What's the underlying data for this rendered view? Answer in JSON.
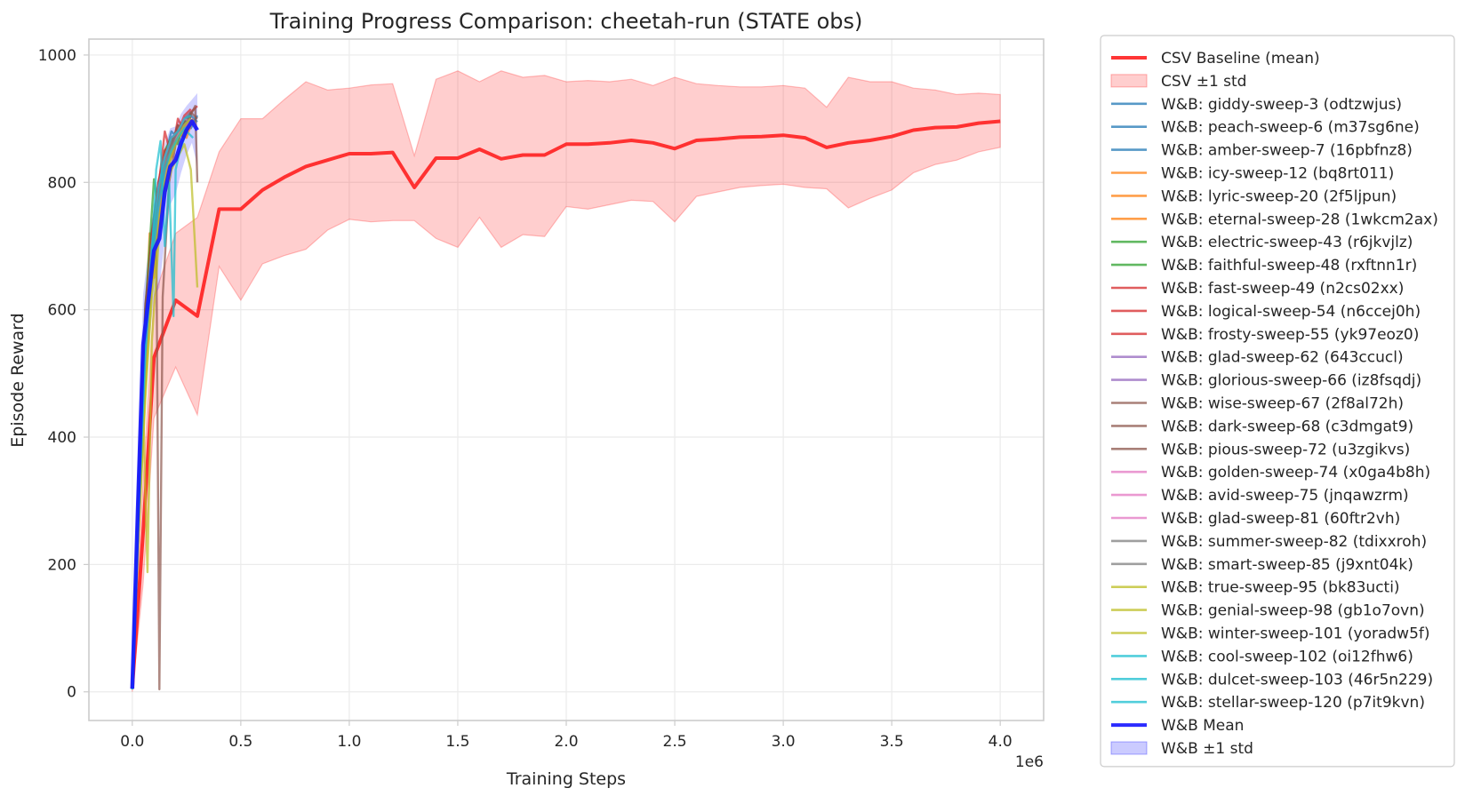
{
  "chart_data": {
    "type": "line",
    "title": "Training Progress Comparison: cheetah-run (STATE obs)",
    "xlabel": "Training Steps",
    "ylabel": "Episode Reward",
    "x_offset_label": "1e6",
    "xlim": [
      -0.2,
      4.2
    ],
    "ylim": [
      -45,
      1025
    ],
    "x_ticks": [
      0.0,
      0.5,
      1.0,
      1.5,
      2.0,
      2.5,
      3.0,
      3.5,
      4.0
    ],
    "x_tick_labels": [
      "0.0",
      "0.5",
      "1.0",
      "1.5",
      "2.0",
      "2.5",
      "3.0",
      "3.5",
      "4.0"
    ],
    "y_ticks": [
      0,
      200,
      400,
      600,
      800,
      1000
    ],
    "y_tick_labels": [
      "0",
      "200",
      "400",
      "600",
      "800",
      "1000"
    ],
    "grid": true,
    "legend_position": "outside-right",
    "csv_baseline": {
      "name": "CSV Baseline (mean)",
      "std_name": "CSV ±1 std",
      "color": "#ff2020",
      "x": [
        0.0,
        0.05,
        0.1,
        0.2,
        0.3,
        0.4,
        0.5,
        0.6,
        0.7,
        0.8,
        0.9,
        1.0,
        1.1,
        1.2,
        1.3,
        1.4,
        1.5,
        1.6,
        1.7,
        1.8,
        1.9,
        2.0,
        2.1,
        2.2,
        2.3,
        2.4,
        2.5,
        2.6,
        2.7,
        2.8,
        2.9,
        3.0,
        3.1,
        3.2,
        3.3,
        3.4,
        3.5,
        3.6,
        3.7,
        3.8,
        3.9,
        4.0
      ],
      "mean": [
        5,
        250,
        525,
        615,
        590,
        758,
        758,
        788,
        808,
        825,
        835,
        845,
        845,
        847,
        792,
        838,
        838,
        852,
        837,
        843,
        843,
        860,
        860,
        862,
        866,
        862,
        853,
        866,
        868,
        871,
        872,
        874,
        870,
        855,
        862,
        866,
        872,
        882,
        886,
        887,
        893,
        896
      ],
      "upper": [
        10,
        330,
        620,
        720,
        745,
        848,
        900,
        900,
        930,
        958,
        945,
        948,
        953,
        955,
        842,
        962,
        975,
        958,
        975,
        965,
        968,
        958,
        960,
        958,
        962,
        952,
        965,
        955,
        952,
        950,
        950,
        952,
        948,
        918,
        965,
        958,
        958,
        948,
        945,
        938,
        940,
        938
      ],
      "lower": [
        0,
        170,
        430,
        510,
        435,
        668,
        615,
        672,
        685,
        695,
        725,
        742,
        738,
        740,
        740,
        712,
        698,
        745,
        698,
        718,
        715,
        762,
        758,
        765,
        772,
        770,
        738,
        778,
        785,
        792,
        795,
        797,
        792,
        790,
        760,
        775,
        788,
        815,
        828,
        835,
        848,
        855
      ]
    },
    "wandb_mean": {
      "name": "W&B Mean",
      "std_name": "W&B ±1 std",
      "color": "#1414ff",
      "x": [
        0.0,
        0.025,
        0.05,
        0.075,
        0.1,
        0.125,
        0.15,
        0.175,
        0.2,
        0.225,
        0.25,
        0.275,
        0.3
      ],
      "y": [
        5,
        280,
        545,
        618,
        693,
        712,
        785,
        825,
        835,
        862,
        882,
        896,
        882
      ],
      "upper": [
        10,
        360,
        625,
        695,
        765,
        790,
        860,
        885,
        888,
        908,
        920,
        930,
        940
      ],
      "lower": [
        0,
        200,
        465,
        540,
        620,
        635,
        710,
        765,
        782,
        815,
        843,
        862,
        825
      ]
    },
    "wandb_runs": [
      {
        "name": "W&B: giddy-sweep-3 (odtzwjus)",
        "color": "#1f77b4",
        "x": [
          0,
          0.03,
          0.06,
          0.09,
          0.12,
          0.15,
          0.18,
          0.21,
          0.24,
          0.27,
          0.3
        ],
        "y": [
          4,
          350,
          600,
          720,
          800,
          840,
          880,
          870,
          900,
          885,
          905
        ]
      },
      {
        "name": "W&B: peach-sweep-6 (m37sg6ne)",
        "color": "#1f77b4",
        "x": [
          0,
          0.03,
          0.06,
          0.09,
          0.12,
          0.15,
          0.18,
          0.21,
          0.24,
          0.27,
          0.3
        ],
        "y": [
          4,
          320,
          560,
          690,
          770,
          820,
          860,
          880,
          870,
          905,
          895
        ]
      },
      {
        "name": "W&B: amber-sweep-7 (16pbfnz8)",
        "color": "#1f77b4",
        "x": [
          0,
          0.03,
          0.06,
          0.09,
          0.12,
          0.15,
          0.18,
          0.21,
          0.24,
          0.27
        ],
        "y": [
          4,
          300,
          530,
          680,
          760,
          800,
          850,
          870,
          880,
          890
        ]
      },
      {
        "name": "W&B: icy-sweep-12 (bq8rt011)",
        "color": "#ff7f0e",
        "x": [
          0,
          0.03,
          0.06,
          0.08,
          0.1,
          0.13,
          0.16,
          0.19,
          0.22,
          0.25,
          0.28
        ],
        "y": [
          4,
          280,
          560,
          720,
          650,
          780,
          840,
          860,
          890,
          870,
          900
        ]
      },
      {
        "name": "W&B: lyric-sweep-20 (2f5ljpun)",
        "color": "#ff7f0e",
        "x": [
          0,
          0.03,
          0.06,
          0.09,
          0.12,
          0.15,
          0.18,
          0.21,
          0.24,
          0.27
        ],
        "y": [
          4,
          300,
          500,
          650,
          740,
          810,
          850,
          880,
          870,
          895
        ]
      },
      {
        "name": "W&B: eternal-sweep-28 (1wkcm2ax)",
        "color": "#ff7f0e",
        "x": [
          0,
          0.03,
          0.06,
          0.09,
          0.12,
          0.15,
          0.18,
          0.21,
          0.24,
          0.27
        ],
        "y": [
          4,
          260,
          480,
          700,
          760,
          820,
          840,
          870,
          880,
          900
        ]
      },
      {
        "name": "W&B: electric-sweep-43 (r6jkvjlz)",
        "color": "#2ca02c",
        "x": [
          0,
          0.03,
          0.06,
          0.08,
          0.1,
          0.12,
          0.15,
          0.18,
          0.21,
          0.24,
          0.27
        ],
        "y": [
          4,
          320,
          600,
          700,
          805,
          760,
          850,
          870,
          860,
          900,
          910
        ]
      },
      {
        "name": "W&B: faithful-sweep-48 (rxftnn1r)",
        "color": "#2ca02c",
        "x": [
          0,
          0.03,
          0.06,
          0.09,
          0.12,
          0.15,
          0.18,
          0.21,
          0.24,
          0.27
        ],
        "y": [
          4,
          290,
          560,
          700,
          780,
          830,
          855,
          880,
          895,
          905
        ]
      },
      {
        "name": "W&B: fast-sweep-49 (n2cs02xx)",
        "color": "#d62728",
        "x": [
          0,
          0.03,
          0.06,
          0.09,
          0.12,
          0.15,
          0.18,
          0.21,
          0.24,
          0.27,
          0.3
        ],
        "y": [
          4,
          330,
          590,
          720,
          790,
          880,
          840,
          900,
          880,
          910,
          920
        ]
      },
      {
        "name": "W&B: logical-sweep-54 (n6ccej0h)",
        "color": "#d62728",
        "x": [
          0,
          0.03,
          0.06,
          0.09,
          0.12,
          0.15,
          0.18,
          0.21,
          0.24,
          0.27
        ],
        "y": [
          4,
          300,
          540,
          680,
          760,
          810,
          870,
          880,
          905,
          915
        ]
      },
      {
        "name": "W&B: frosty-sweep-55 (yk97eoz0)",
        "color": "#d62728",
        "x": [
          0,
          0.03,
          0.06,
          0.09,
          0.12,
          0.15,
          0.18,
          0.21,
          0.24,
          0.27
        ],
        "y": [
          4,
          310,
          570,
          700,
          800,
          850,
          860,
          890,
          880,
          905
        ]
      },
      {
        "name": "W&B: glad-sweep-62 (643ccucl)",
        "color": "#9467bd",
        "x": [
          0,
          0.03,
          0.06,
          0.09,
          0.12,
          0.15,
          0.18,
          0.21,
          0.24,
          0.27
        ],
        "y": [
          4,
          280,
          520,
          660,
          750,
          800,
          845,
          870,
          890,
          900
        ]
      },
      {
        "name": "W&B: glorious-sweep-66 (iz8fsqdj)",
        "color": "#9467bd",
        "x": [
          0,
          0.03,
          0.06,
          0.09,
          0.12,
          0.15,
          0.18,
          0.21,
          0.24,
          0.27
        ],
        "y": [
          4,
          300,
          550,
          690,
          780,
          830,
          860,
          875,
          900,
          910
        ]
      },
      {
        "name": "W&B: wise-sweep-67 (2f8al72h)",
        "color": "#8c564b",
        "x": [
          0,
          0.03,
          0.06,
          0.09,
          0.11,
          0.125,
          0.14,
          0.17,
          0.2,
          0.23,
          0.26,
          0.29,
          0.3
        ],
        "y": [
          4,
          330,
          610,
          700,
          740,
          4,
          620,
          800,
          860,
          880,
          900,
          920,
          800
        ]
      },
      {
        "name": "W&B: dark-sweep-68 (c3dmgat9)",
        "color": "#8c564b",
        "x": [
          0,
          0.03,
          0.06,
          0.09,
          0.12,
          0.15,
          0.18,
          0.21,
          0.24,
          0.27,
          0.3
        ],
        "y": [
          4,
          320,
          580,
          700,
          780,
          840,
          860,
          890,
          880,
          910,
          900
        ]
      },
      {
        "name": "W&B: pious-sweep-72 (u3zgikvs)",
        "color": "#8c564b",
        "x": [
          0,
          0.03,
          0.06,
          0.09,
          0.12,
          0.15,
          0.18,
          0.21,
          0.24,
          0.27
        ],
        "y": [
          4,
          310,
          560,
          690,
          770,
          820,
          860,
          880,
          895,
          905
        ]
      },
      {
        "name": "W&B: golden-sweep-74 (x0ga4b8h)",
        "color": "#e377c2",
        "x": [
          0,
          0.03,
          0.06,
          0.09,
          0.12,
          0.15,
          0.18,
          0.21,
          0.24,
          0.27
        ],
        "y": [
          4,
          290,
          540,
          680,
          770,
          830,
          850,
          870,
          890,
          900
        ]
      },
      {
        "name": "W&B: avid-sweep-75 (jnqawzrm)",
        "color": "#e377c2",
        "x": [
          0,
          0.03,
          0.06,
          0.09,
          0.12,
          0.15,
          0.18,
          0.21,
          0.24,
          0.27
        ],
        "y": [
          4,
          300,
          560,
          700,
          790,
          840,
          870,
          880,
          900,
          895
        ]
      },
      {
        "name": "W&B: glad-sweep-81 (60ftr2vh)",
        "color": "#e377c2",
        "x": [
          0,
          0.03,
          0.06,
          0.09,
          0.12,
          0.15,
          0.18,
          0.21,
          0.24,
          0.27
        ],
        "y": [
          4,
          280,
          520,
          670,
          760,
          810,
          850,
          875,
          885,
          900
        ]
      },
      {
        "name": "W&B: summer-sweep-82 (tdixxroh)",
        "color": "#7f7f7f",
        "x": [
          0,
          0.03,
          0.06,
          0.09,
          0.12,
          0.15,
          0.18,
          0.21,
          0.24,
          0.27
        ],
        "y": [
          4,
          300,
          550,
          690,
          780,
          830,
          860,
          880,
          890,
          905
        ]
      },
      {
        "name": "W&B: smart-sweep-85 (j9xnt04k)",
        "color": "#7f7f7f",
        "x": [
          0,
          0.03,
          0.06,
          0.09,
          0.12,
          0.15,
          0.18,
          0.21,
          0.24,
          0.27
        ],
        "y": [
          4,
          290,
          540,
          680,
          770,
          820,
          855,
          870,
          890,
          900
        ]
      },
      {
        "name": "W&B: true-sweep-95 (bk83ucti)",
        "color": "#bcbd22",
        "x": [
          0,
          0.03,
          0.05,
          0.07,
          0.09,
          0.12,
          0.15,
          0.18,
          0.21,
          0.24,
          0.27
        ],
        "y": [
          4,
          300,
          450,
          188,
          550,
          700,
          800,
          850,
          870,
          890,
          900
        ]
      },
      {
        "name": "W&B: genial-sweep-98 (gb1o7ovn)",
        "color": "#bcbd22",
        "x": [
          0,
          0.03,
          0.06,
          0.09,
          0.12,
          0.15,
          0.18,
          0.21,
          0.24,
          0.27
        ],
        "y": [
          4,
          260,
          480,
          640,
          740,
          800,
          840,
          870,
          880,
          895
        ]
      },
      {
        "name": "W&B: winter-sweep-101 (yoradw5f)",
        "color": "#bcbd22",
        "x": [
          0,
          0.03,
          0.06,
          0.09,
          0.12,
          0.15,
          0.18,
          0.21,
          0.24,
          0.27,
          0.3
        ],
        "y": [
          4,
          250,
          460,
          620,
          720,
          780,
          820,
          840,
          860,
          820,
          635
        ]
      },
      {
        "name": "W&B: cool-sweep-102 (oi12fhw6)",
        "color": "#17becf",
        "x": [
          0,
          0.03,
          0.06,
          0.09,
          0.11,
          0.13,
          0.15,
          0.17,
          0.19,
          0.2,
          0.22,
          0.25,
          0.28
        ],
        "y": [
          4,
          300,
          560,
          680,
          820,
          865,
          700,
          800,
          590,
          820,
          850,
          880,
          870
        ]
      },
      {
        "name": "W&B: dulcet-sweep-103 (46r5n229)",
        "color": "#17becf",
        "x": [
          0,
          0.03,
          0.06,
          0.09,
          0.12,
          0.15,
          0.18,
          0.21,
          0.24,
          0.27
        ],
        "y": [
          4,
          280,
          530,
          670,
          760,
          820,
          850,
          870,
          885,
          890
        ]
      },
      {
        "name": "W&B: stellar-sweep-120 (p7it9kvn)",
        "color": "#17becf",
        "x": [
          0,
          0.03,
          0.06,
          0.09,
          0.12,
          0.15,
          0.18,
          0.21,
          0.24,
          0.27
        ],
        "y": [
          4,
          300,
          560,
          700,
          790,
          840,
          870,
          880,
          900,
          905
        ]
      }
    ]
  }
}
